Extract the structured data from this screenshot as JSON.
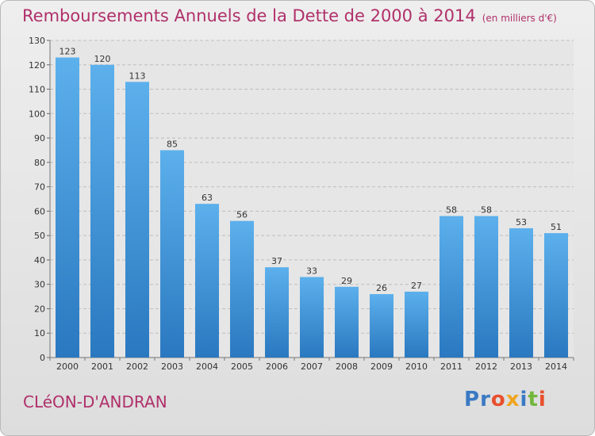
{
  "chart_data": {
    "type": "bar",
    "title": "Remboursements Annuels de la Dette de 2000 à 2014",
    "unit": "(en milliers d'€)",
    "categories": [
      "2000",
      "2001",
      "2002",
      "2003",
      "2004",
      "2005",
      "2006",
      "2007",
      "2008",
      "2009",
      "2010",
      "2011",
      "2012",
      "2013",
      "2014"
    ],
    "values": [
      123,
      120,
      113,
      85,
      63,
      56,
      37,
      33,
      29,
      26,
      27,
      58,
      58,
      53,
      51
    ],
    "ylim": [
      0,
      130
    ],
    "yticks": [
      0,
      10,
      20,
      30,
      40,
      50,
      60,
      70,
      80,
      90,
      100,
      110,
      120,
      130
    ],
    "grid": true,
    "bar_color": "#4a9edf",
    "bar_color_dark": "#2f7fc6"
  },
  "commune": "CLéON-D'ANDRAN",
  "logo": {
    "letters": [
      "P",
      "r",
      "o",
      "x",
      "i",
      "t",
      "i"
    ],
    "colors": [
      "#3a79c4",
      "#3a79c4",
      "#e84f2d",
      "#f0a520",
      "#3a79c4",
      "#72b63b",
      "#e84f2d"
    ]
  }
}
